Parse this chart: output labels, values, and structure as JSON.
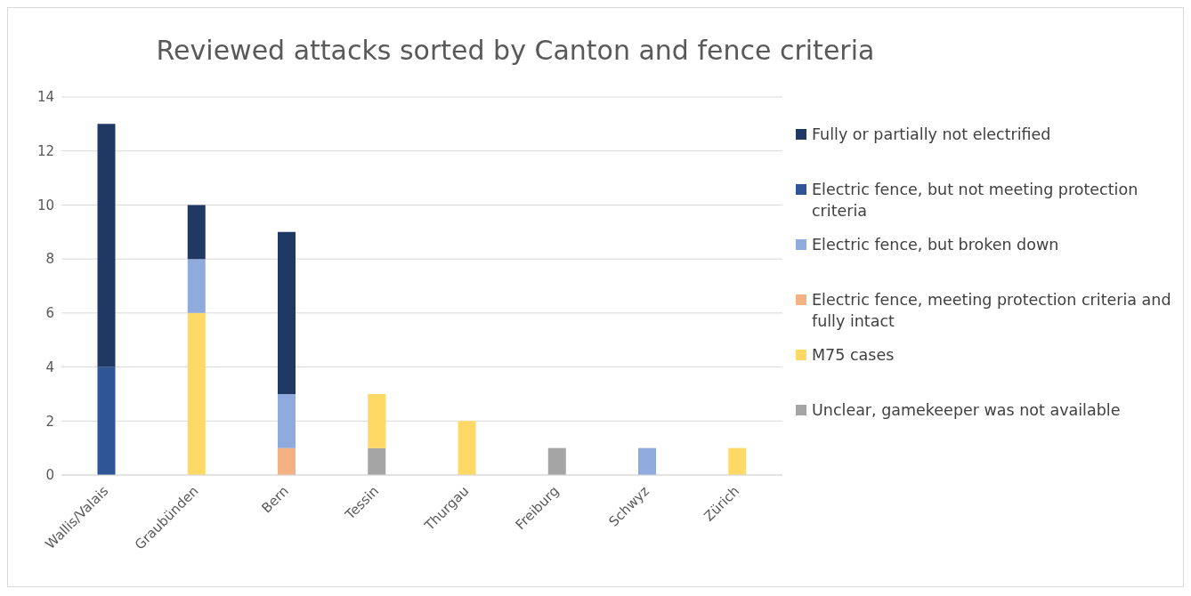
{
  "chart_data": {
    "type": "bar",
    "title": "Reviewed attacks sorted by Canton and fence criteria",
    "stacked": true,
    "categories": [
      "Wallis/Valais",
      "Graubünden",
      "Bern",
      "Tessin",
      "Thurgau",
      "Freiburg",
      "Schwyz",
      "Zürich"
    ],
    "series": [
      {
        "name": "Unclear, gamekeeper was not available",
        "color": "#a5a5a5",
        "values": [
          0,
          0,
          0,
          1,
          0,
          1,
          0,
          0
        ]
      },
      {
        "name": "M75 cases",
        "color": "#ffd966",
        "values": [
          0,
          6,
          0,
          2,
          2,
          0,
          0,
          1
        ]
      },
      {
        "name": "Electric fence, meeting protection criteria and fully intact",
        "color": "#f4b183",
        "values": [
          0,
          0,
          1,
          0,
          0,
          0,
          0,
          0
        ]
      },
      {
        "name": "Electric fence, but broken down",
        "color": "#8faadc",
        "values": [
          0,
          2,
          2,
          0,
          0,
          0,
          1,
          0
        ]
      },
      {
        "name": "Electric fence, but not meeting protection criteria",
        "color": "#2f5597",
        "values": [
          4,
          0,
          0,
          0,
          0,
          0,
          0,
          0
        ]
      },
      {
        "name": "Fully or partially not electrified",
        "color": "#1f3864",
        "values": [
          9,
          2,
          6,
          0,
          0,
          0,
          0,
          0
        ]
      }
    ],
    "ylim": [
      0,
      14
    ],
    "yticks": [
      0,
      2,
      4,
      6,
      8,
      10,
      12,
      14
    ],
    "grid": "y",
    "legend": "right"
  }
}
